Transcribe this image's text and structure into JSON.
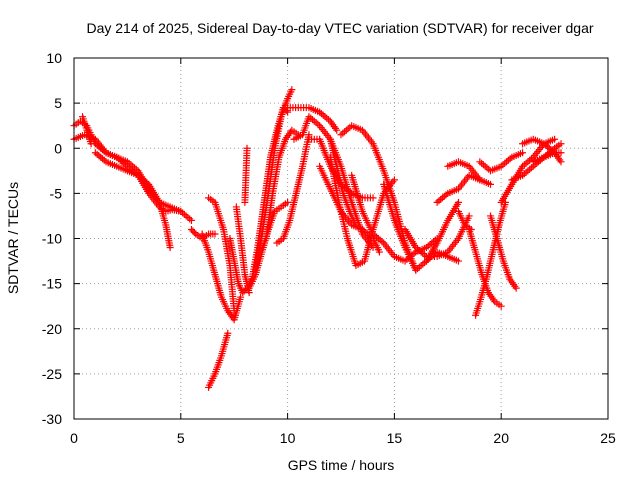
{
  "chart_data": {
    "type": "scatter",
    "title": "Day 214 of 2025, Sidereal Day-to-day VTEC variation (SDTVAR) for receiver dgar",
    "xlabel": "GPS time / hours",
    "ylabel": "SDTVAR / TECUs",
    "xlim": [
      0,
      25
    ],
    "ylim": [
      -30,
      10
    ],
    "xticks": [
      "0",
      "5",
      "10",
      "15",
      "20",
      "25"
    ],
    "yticks": [
      "-30",
      "-25",
      "-20",
      "-15",
      "-10",
      "-5",
      "0",
      "5",
      "10"
    ],
    "grid": true,
    "legend": "none",
    "marker": "plus",
    "color": "#ff0000",
    "tracks": [
      {
        "x": [
          0.0,
          0.3,
          0.6,
          1.0,
          1.5,
          2.0,
          2.5,
          3.0,
          3.5,
          4.0,
          4.5,
          5.0,
          5.5
        ],
        "y": [
          2.5,
          3.0,
          2.5,
          0.5,
          -0.5,
          -1.0,
          -1.5,
          -2.5,
          -4.5,
          -6.0,
          -6.5,
          -7.0,
          -8.0
        ]
      },
      {
        "x": [
          0.0,
          0.5,
          1.0,
          1.5,
          2.0,
          2.5,
          3.0,
          3.5,
          4.0,
          4.3,
          4.6,
          5.0
        ],
        "y": [
          1.0,
          1.5,
          1.0,
          -0.5,
          -1.0,
          -2.0,
          -3.0,
          -5.0,
          -6.5,
          -7.0,
          -6.8,
          -7.0
        ]
      },
      {
        "x": [
          1.0,
          1.5,
          2.0,
          2.5,
          3.0,
          3.5,
          4.0,
          4.3,
          4.5
        ],
        "y": [
          -0.5,
          -1.5,
          -2.0,
          -2.5,
          -3.0,
          -4.0,
          -6.0,
          -8.5,
          -11.0
        ]
      },
      {
        "x": [
          0.4,
          0.6,
          0.8
        ],
        "y": [
          3.5,
          2.0,
          0.5
        ]
      },
      {
        "x": [
          5.5,
          5.7,
          6.0,
          6.3,
          6.6
        ],
        "y": [
          -9.0,
          -9.5,
          -10.0,
          -9.5,
          -9.5
        ]
      },
      {
        "x": [
          6.0,
          6.3,
          6.6,
          6.9,
          7.2,
          7.5,
          7.8
        ],
        "y": [
          -9.5,
          -11.5,
          -14.0,
          -16.5,
          -18.0,
          -19.0,
          -16.5
        ]
      },
      {
        "x": [
          6.3,
          6.6,
          7.0,
          7.3,
          7.5
        ],
        "y": [
          -5.5,
          -6.0,
          -9.0,
          -13.0,
          -18.0
        ]
      },
      {
        "x": [
          6.3,
          6.6,
          6.9,
          7.2
        ],
        "y": [
          -26.5,
          -25.0,
          -23.0,
          -20.5
        ]
      },
      {
        "x": [
          7.3,
          7.5,
          7.7,
          7.9,
          8.1,
          8.3
        ],
        "y": [
          -10.0,
          -12.5,
          -15.0,
          -16.0,
          -15.5,
          -14.5
        ]
      },
      {
        "x": [
          7.6,
          7.8,
          8.0,
          8.2
        ],
        "y": [
          -6.5,
          -10.0,
          -14.0,
          -16.0
        ]
      },
      {
        "x": [
          8.0,
          8.05,
          8.1
        ],
        "y": [
          -6.0,
          -3.0,
          0.0
        ]
      },
      {
        "x": [
          8.2,
          8.5,
          8.8,
          9.1,
          9.4,
          9.7,
          10.0
        ],
        "y": [
          -15.5,
          -14.0,
          -11.5,
          -9.0,
          -7.0,
          -6.5,
          -6.0
        ]
      },
      {
        "x": [
          8.3,
          8.6,
          8.9,
          9.2,
          9.5,
          9.8,
          10.0
        ],
        "y": [
          -15.0,
          -11.0,
          -6.0,
          -1.0,
          2.0,
          4.5,
          4.0
        ]
      },
      {
        "x": [
          8.5,
          8.8,
          9.1,
          9.4,
          9.7,
          10.0,
          10.2
        ],
        "y": [
          -13.5,
          -9.5,
          -5.0,
          0.0,
          3.5,
          5.5,
          6.5
        ]
      },
      {
        "x": [
          9.0,
          9.3,
          9.6,
          9.9,
          10.2,
          10.5
        ],
        "y": [
          -10.0,
          -5.0,
          -1.0,
          1.0,
          2.0,
          1.5
        ]
      },
      {
        "x": [
          9.5,
          9.8,
          10.1,
          10.4,
          10.7,
          11.0
        ],
        "y": [
          -10.5,
          -10.0,
          -8.0,
          -5.0,
          -2.0,
          1.5
        ]
      },
      {
        "x": [
          10.0,
          10.5,
          11.0,
          11.5,
          12.0,
          12.3
        ],
        "y": [
          4.5,
          4.5,
          4.5,
          4.0,
          3.0,
          2.0
        ]
      },
      {
        "x": [
          10.3,
          10.7,
          11.0,
          11.5,
          12.0,
          12.5,
          13.0,
          13.5,
          14.0
        ],
        "y": [
          1.0,
          1.5,
          3.5,
          2.5,
          1.0,
          -2.0,
          -6.0,
          -9.5,
          -11.0
        ]
      },
      {
        "x": [
          11.5,
          12.0,
          12.5,
          13.0,
          13.5,
          14.0,
          14.3
        ],
        "y": [
          -2.0,
          -4.5,
          -7.0,
          -8.5,
          -9.0,
          -10.0,
          -11.5
        ]
      },
      {
        "x": [
          11.0,
          11.5,
          12.0,
          12.5,
          13.0,
          13.5,
          14.0
        ],
        "y": [
          1.0,
          1.0,
          -2.0,
          -4.0,
          -5.0,
          -5.5,
          -5.5
        ]
      },
      {
        "x": [
          12.0,
          12.3,
          12.6,
          12.9,
          13.2
        ],
        "y": [
          1.0,
          -2.0,
          -5.0,
          -7.0,
          -8.5
        ]
      },
      {
        "x": [
          12.0,
          12.4,
          12.8,
          13.2,
          13.6,
          14.0,
          14.5,
          15.0
        ],
        "y": [
          -1.0,
          -6.0,
          -10.0,
          -13.0,
          -12.5,
          -9.0,
          -5.0,
          -3.5
        ]
      },
      {
        "x": [
          12.5,
          13.0,
          13.5,
          14.0,
          14.5,
          15.0,
          15.5,
          16.0
        ],
        "y": [
          1.5,
          2.5,
          2.0,
          0.5,
          -2.5,
          -6.0,
          -10.5,
          -13.5
        ]
      },
      {
        "x": [
          13.0,
          13.5,
          14.0,
          14.5,
          15.0,
          15.5,
          16.0,
          16.5,
          17.0
        ],
        "y": [
          -3.0,
          -7.0,
          -9.5,
          -10.5,
          -12.0,
          -12.5,
          -11.5,
          -11.0,
          -10.0
        ]
      },
      {
        "x": [
          14.5,
          15.0,
          15.5,
          16.0,
          16.5,
          17.0,
          17.5,
          18.0
        ],
        "y": [
          -4.0,
          -8.0,
          -11.0,
          -13.5,
          -12.5,
          -10.5,
          -8.0,
          -6.0
        ]
      },
      {
        "x": [
          15.5,
          16.0,
          16.5,
          17.0,
          17.5,
          18.0,
          18.5
        ],
        "y": [
          -9.0,
          -11.0,
          -12.0,
          -12.0,
          -11.5,
          -10.0,
          -7.5
        ]
      },
      {
        "x": [
          16.5,
          17.0,
          17.5,
          18.0
        ],
        "y": [
          -12.5,
          -11.5,
          -12.0,
          -12.5
        ]
      },
      {
        "x": [
          17.0,
          17.5,
          18.0,
          18.5,
          19.0
        ],
        "y": [
          -6.0,
          -5.0,
          -4.5,
          -3.0,
          -3.5
        ]
      },
      {
        "x": [
          17.5,
          18.0,
          18.5,
          19.0,
          19.5
        ],
        "y": [
          -2.0,
          -1.5,
          -2.0,
          -3.5,
          -4.0
        ]
      },
      {
        "x": [
          18.0,
          18.3,
          18.6
        ],
        "y": [
          -7.0,
          -8.5,
          -9.0
        ]
      },
      {
        "x": [
          18.5,
          18.8,
          19.1,
          19.4,
          19.7,
          20.0
        ],
        "y": [
          -9.0,
          -11.5,
          -14.0,
          -16.0,
          -17.0,
          -17.5
        ]
      },
      {
        "x": [
          18.8,
          19.0,
          19.3,
          19.6,
          19.9,
          20.2
        ],
        "y": [
          -18.5,
          -17.0,
          -14.5,
          -11.5,
          -8.5,
          -6.0
        ]
      },
      {
        "x": [
          19.5,
          19.8,
          20.1,
          20.4,
          20.7
        ],
        "y": [
          -7.5,
          -10.0,
          -12.5,
          -14.5,
          -15.5
        ]
      },
      {
        "x": [
          19.0,
          19.5,
          20.0,
          20.5,
          21.0
        ],
        "y": [
          -1.5,
          -2.5,
          -2.0,
          -1.0,
          -0.5
        ]
      },
      {
        "x": [
          20.0,
          20.5,
          21.0,
          21.5,
          22.0,
          22.5
        ],
        "y": [
          -6.0,
          -4.0,
          -2.0,
          -1.0,
          0.5,
          1.0
        ]
      },
      {
        "x": [
          20.5,
          21.0,
          21.5,
          22.0,
          22.5,
          22.8
        ],
        "y": [
          -3.5,
          -3.0,
          -2.0,
          -1.0,
          0.0,
          0.5
        ]
      },
      {
        "x": [
          21.0,
          21.5,
          22.0,
          22.5,
          22.8
        ],
        "y": [
          0.5,
          1.0,
          0.5,
          -0.5,
          -1.5
        ]
      },
      {
        "x": [
          21.5,
          22.0,
          22.5,
          22.8
        ],
        "y": [
          -1.5,
          -1.0,
          -0.5,
          -0.5
        ]
      }
    ]
  }
}
